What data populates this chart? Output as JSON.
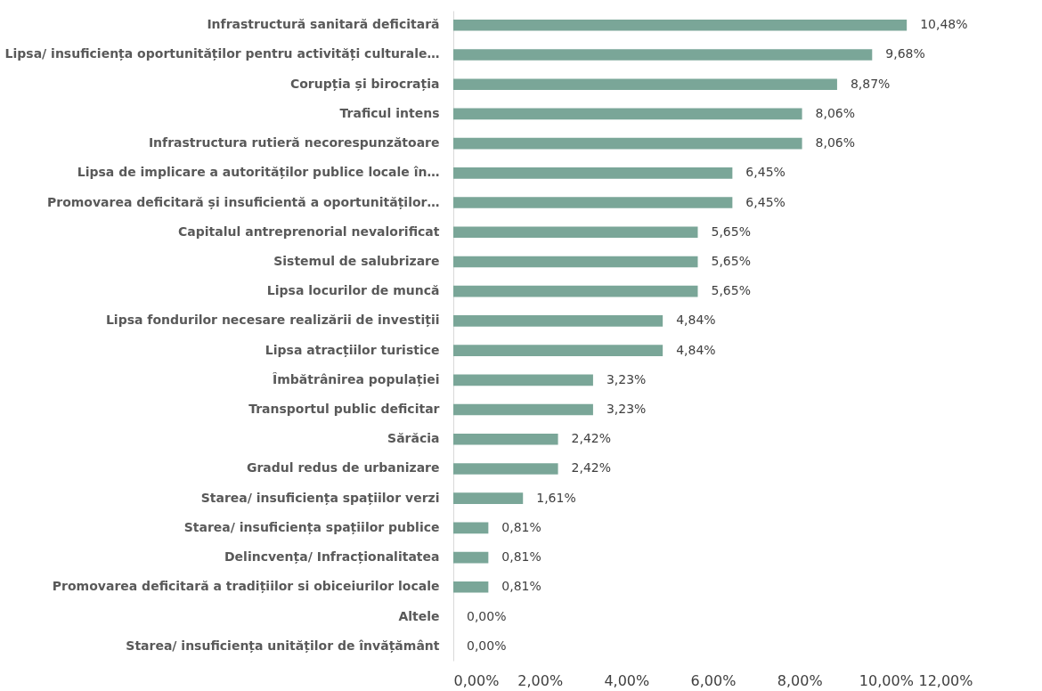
{
  "chart_data": {
    "type": "bar",
    "orientation": "horizontal",
    "categories": [
      "Infrastructură sanitară deficitară",
      "Lipsa/ insuficiența oportunităților pentru activități culturale…",
      "Corupția și birocrația",
      "Traficul intens",
      "Infrastructura rutieră necorespunzătoare",
      "Lipsa de implicare a autorităților publice locale în…",
      "Promovarea deficitară și insuficientă a oportunităților…",
      "Capitalul antreprenorial nevalorificat",
      "Sistemul de salubrizare",
      "Lipsa locurilor de muncă",
      "Lipsa fondurilor necesare realizării de investiții",
      "Lipsa atracțiilor turistice",
      "Îmbătrânirea populației",
      "Transportul public deficitar",
      "Sărăcia",
      "Gradul redus de urbanizare",
      "Starea/ insuficiența spațiilor verzi",
      "Starea/ insuficiența spațiilor publice",
      "Delincvența/ Infracționalitatea",
      "Promovarea deficitară a tradițiilor si obiceiurilor locale",
      "Altele",
      "Starea/ insuficiența unităților de învățământ"
    ],
    "values": [
      10.48,
      9.68,
      8.87,
      8.06,
      8.06,
      6.45,
      6.45,
      5.65,
      5.65,
      5.65,
      4.84,
      4.84,
      3.23,
      3.23,
      2.42,
      2.42,
      1.61,
      0.81,
      0.81,
      0.81,
      0,
      0
    ],
    "value_labels": [
      "10,48%",
      "9,68%",
      "8,87%",
      "8,06%",
      "8,06%",
      "6,45%",
      "6,45%",
      "5,65%",
      "5,65%",
      "5,65%",
      "4,84%",
      "4,84%",
      "3,23%",
      "3,23%",
      "2,42%",
      "2,42%",
      "1,61%",
      "0,81%",
      "0,81%",
      "0,81%",
      "0,00%",
      "0,00%"
    ],
    "color": "#7aa698",
    "xlim": [
      0,
      12
    ],
    "xticks": [
      {
        "value": 0,
        "label": "0,00%"
      },
      {
        "value": 2,
        "label": "2,00%"
      },
      {
        "value": 4,
        "label": "4,00%"
      },
      {
        "value": 6,
        "label": "6,00%"
      },
      {
        "value": 8,
        "label": "8,00%"
      },
      {
        "value": 10,
        "label": "10,00%"
      },
      {
        "value": 12,
        "label": "12,00%"
      }
    ]
  }
}
